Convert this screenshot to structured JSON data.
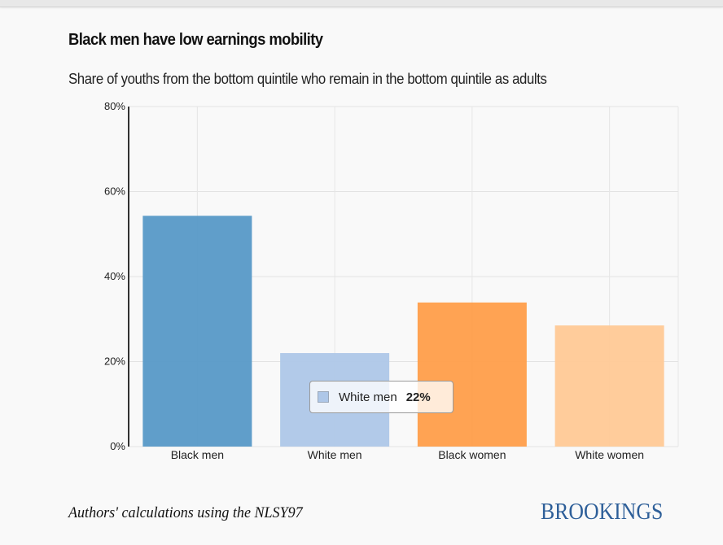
{
  "title": "Black men have low earnings mobility",
  "subtitle": "Share of youths from the bottom quintile who remain in the bottom quintile as adults",
  "source": "Authors' calculations using the NLSY97",
  "brand": "BROOKINGS",
  "tooltip": {
    "label": "White men",
    "value": "22%",
    "color": "#aec7e8"
  },
  "chart_data": {
    "type": "bar",
    "title": "Black men have low earnings mobility",
    "subtitle": "Share of youths from the bottom quintile who remain in the bottom quintile as adults",
    "xlabel": "",
    "ylabel": "",
    "categories": [
      "Black men",
      "White men",
      "Black women",
      "White women"
    ],
    "values": [
      54.3,
      22,
      33.9,
      28.5
    ],
    "colors": [
      "#5799c7",
      "#aec7e8",
      "#ff9e4a",
      "#ffc996"
    ],
    "ylim": [
      0,
      80
    ],
    "yticks": [
      0,
      20,
      40,
      60,
      80
    ],
    "ytick_labels": [
      "0%",
      "20%",
      "40%",
      "60%",
      "80%"
    ],
    "grid": true,
    "legend": "none"
  }
}
